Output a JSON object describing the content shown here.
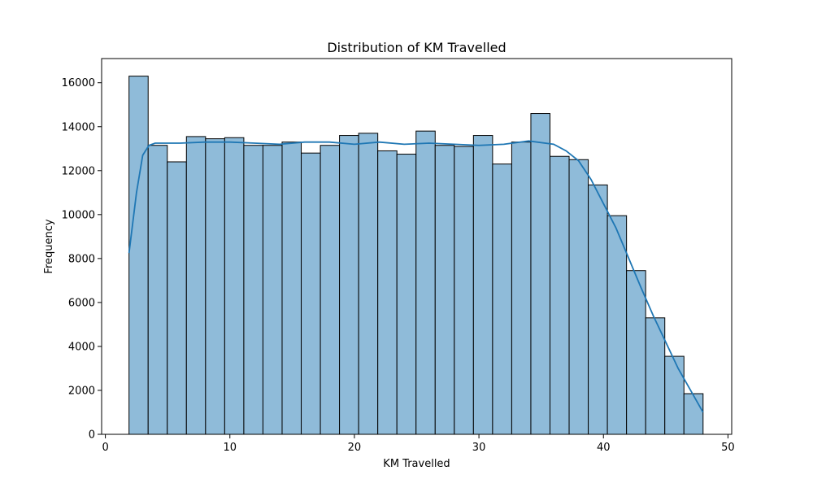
{
  "chart_data": {
    "type": "bar",
    "title": "Distribution of KM Travelled",
    "xlabel": "KM Travelled",
    "ylabel": "Frequency",
    "xlim": [
      -0.3,
      50.3
    ],
    "ylim": [
      0,
      17100
    ],
    "xticks": [
      0,
      10,
      20,
      30,
      40,
      50
    ],
    "yticks": [
      0,
      2000,
      4000,
      6000,
      8000,
      10000,
      12000,
      14000,
      16000
    ],
    "grid": false,
    "legend": "none",
    "colors": {
      "bar_fill": "#8fbbd9",
      "bar_edge": "#000000",
      "kde_line": "#1f77b4"
    },
    "bin_start": 1.9,
    "bin_width": 1.5367,
    "counts": [
      16300,
      13150,
      12400,
      13550,
      13450,
      13500,
      13150,
      13150,
      13300,
      12800,
      13150,
      13600,
      13700,
      12900,
      12750,
      13800,
      13150,
      13100,
      13600,
      12300,
      13300,
      14600,
      12650,
      12500,
      11350,
      9950,
      7450,
      5300,
      3550,
      1850
    ],
    "kde": {
      "x": [
        1.9,
        2.5,
        3.0,
        3.5,
        4.0,
        5,
        6,
        8,
        10,
        12,
        14,
        16,
        18,
        20,
        22,
        24,
        26,
        28,
        30,
        32,
        34,
        36,
        37,
        38,
        39,
        40,
        41,
        42,
        43,
        44,
        45,
        46,
        47,
        48
      ],
      "y": [
        8250,
        11000,
        12700,
        13150,
        13250,
        13250,
        13250,
        13300,
        13300,
        13250,
        13200,
        13300,
        13300,
        13200,
        13300,
        13200,
        13250,
        13200,
        13150,
        13200,
        13350,
        13200,
        12900,
        12450,
        11600,
        10500,
        9400,
        8050,
        6700,
        5400,
        4200,
        3000,
        2000,
        1000
      ]
    }
  }
}
